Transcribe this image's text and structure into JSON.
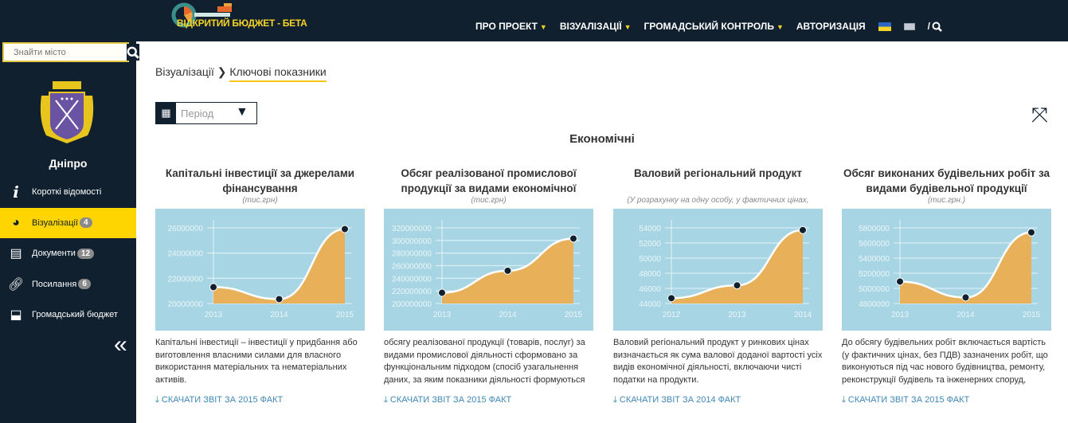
{
  "header": {
    "logo_text": "ВІДКРИТИЙ БЮДЖЕТ - БЕТА",
    "nav": [
      {
        "label": "ПРО ПРОЕКТ",
        "dropdown": true
      },
      {
        "label": "ВІЗУАЛІЗАЦІЇ",
        "dropdown": true
      },
      {
        "label": "ГРОМАДСЬКИЙ КОНТРОЛЬ",
        "dropdown": true
      },
      {
        "label": "АВТОРИЗАЦІЯ",
        "dropdown": false
      }
    ],
    "search_sep": "/"
  },
  "sidebar": {
    "search_placeholder": "Знайти місто",
    "city": "Дніпро",
    "items": [
      {
        "label": "Короткі відомості",
        "icon": "info-icon",
        "badge": ""
      },
      {
        "label": "Візуалізації",
        "icon": "pie-chart-icon",
        "badge": "4",
        "active": true
      },
      {
        "label": "Документи",
        "icon": "document-icon",
        "badge": "12"
      },
      {
        "label": "Посилання",
        "icon": "link-icon",
        "badge": "6"
      },
      {
        "label": "Громадський бюджет",
        "icon": "inbox-download-icon",
        "badge": ""
      }
    ]
  },
  "breadcrumb": {
    "parent": "Візуалізації",
    "current": "Ключові показники"
  },
  "period": {
    "placeholder": "Період"
  },
  "section_title": "Економічні",
  "colors": {
    "chart_bg": "#a8d5e3",
    "area": "#e9b05a",
    "accent": "#fed501",
    "link": "#3e87b5"
  },
  "cards": [
    {
      "title": "Капітальні інвестиції за джерелами фінансування",
      "unit": "(тис.грн)",
      "desc": "Капітальні інвестиції – інвестиції у придбання або виготовлення власними силами для власного використання матеріальних та нематеріальних активів.",
      "link": "СКАЧАТИ ЗВІТ ЗА 2015 ФАКТ"
    },
    {
      "title": "Обсяг реалізованої промислової продукції за видами економічної",
      "unit": "(тис.грн)",
      "desc": "обсягу реалізованої продукції (товарів, послуг) за видами промислової діяльності сформовано за функціональним підходом (спосіб узагальнення даних, за яким показники діяльності формуються за однорідними видами діяльності (продуктами)).",
      "link": "СКАЧАТИ ЗВІТ ЗА 2015 ФАКТ"
    },
    {
      "title": "Валовий регіональний продукт",
      "unit": "(У розрахунку на одну особу, у фактичних цінах,",
      "desc": "Валовий регіональний продукт у ринкових цінах визначається як сума валової доданої вартості усіх видів економічної діяльності, включаючи чисті податки на продукти.",
      "link": "СКАЧАТИ ЗВІТ ЗА 2014 ФАКТ"
    },
    {
      "title": "Обсяг виконаних будівельних робіт за видами будівельної продукції",
      "unit": "(тис.грн.)",
      "desc": "До обсягу будівельних робіт включається вартість (у фактичних цінах, без ПДВ) зазначених робіт, що виконуються під час нового будівництва, ремонту, реконструкції будівель та інженерних споруд,",
      "link": "СКАЧАТИ ЗВІТ ЗА 2015 ФАКТ"
    }
  ],
  "chart_data": [
    {
      "type": "area",
      "x": [
        "2013",
        "2014",
        "2015"
      ],
      "values": [
        21300000,
        20350000,
        25900000
      ],
      "ylim": [
        20000000,
        26000000
      ],
      "yticks": [
        "20000000",
        "22000000",
        "24000000",
        "26000000"
      ],
      "grid": true
    },
    {
      "type": "area",
      "x": [
        "2013",
        "2014",
        "2015"
      ],
      "values": [
        217000000,
        252000000,
        303000000
      ],
      "ylim": [
        200000000,
        320000000
      ],
      "yticks": [
        "200000000",
        "220000000",
        "240000000",
        "260000000",
        "280000000",
        "300000000",
        "320000000"
      ],
      "grid": true
    },
    {
      "type": "area",
      "x": [
        "2012",
        "2013",
        "2014"
      ],
      "values": [
        44700,
        46400,
        53700
      ],
      "ylim": [
        44000,
        54000
      ],
      "yticks": [
        "44000",
        "46000",
        "48000",
        "50000",
        "52000",
        "54000"
      ],
      "grid": true
    },
    {
      "type": "area",
      "x": [
        "2013",
        "2014",
        "2015"
      ],
      "values": [
        5090000,
        4880000,
        5740000
      ],
      "ylim": [
        4800000,
        5800000
      ],
      "yticks": [
        "4800000",
        "5000000",
        "5200000",
        "5400000",
        "5600000",
        "5800000"
      ],
      "grid": true
    }
  ]
}
